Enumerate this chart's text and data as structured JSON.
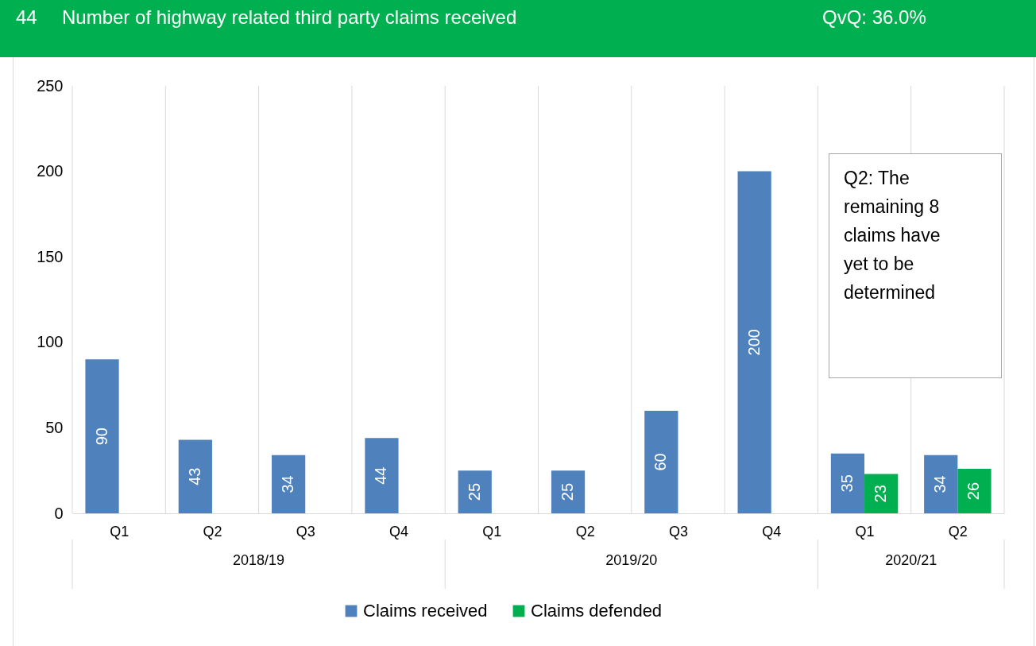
{
  "chart_data": {
    "type": "bar",
    "title": "Number of highway related third party claims received",
    "subtitle": "QvQ: 36.0%",
    "annotations": [
      "44",
      "Q2: The remaining 8 claims have yet to be determined",
      "2018/19",
      "2019/20",
      "2020/21"
    ],
    "categories": [
      "Q1",
      "Q2",
      "Q3",
      "Q4",
      "Q1",
      "Q2",
      "Q3",
      "Q4",
      "Q1",
      "Q2"
    ],
    "series": [
      {
        "name": "Claims received",
        "color": "#4f81bd",
        "values": [
          90,
          43,
          34,
          44,
          25,
          25,
          60,
          200,
          35,
          34
        ]
      },
      {
        "name": "Claims defended",
        "color": "#00b050",
        "values": [
          null,
          null,
          null,
          null,
          null,
          null,
          null,
          null,
          23,
          26
        ]
      }
    ],
    "ylim": [
      0,
      250
    ],
    "yticks": [
      0,
      50,
      100,
      150,
      200,
      250
    ],
    "grid": "x",
    "legend": "bottom",
    "data_labels": true
  }
}
